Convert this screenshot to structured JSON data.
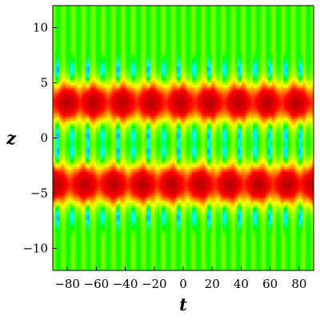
{
  "chart_data": {
    "type": "heatmap",
    "title": "",
    "xlabel": "t",
    "ylabel": "z",
    "xlim": [
      -90,
      90
    ],
    "ylim": [
      -12,
      12
    ],
    "x_ticks": [
      -80,
      -60,
      -40,
      -20,
      0,
      20,
      40,
      60,
      80
    ],
    "x_tick_labels": [
      "−80",
      "−60",
      "−40",
      "−20",
      "0",
      "20",
      "40",
      "60",
      "80"
    ],
    "y_ticks": [
      10,
      5,
      0,
      -5,
      -10
    ],
    "y_tick_labels": [
      "10",
      "5",
      "0",
      "−5",
      "−10"
    ],
    "colormap": [
      "#0000ff",
      "#00ffff",
      "#00ff00",
      "#ffff00",
      "#ff0000",
      "#b00000"
    ],
    "background_value": 0.45,
    "upper_band": {
      "z_center": 3.2,
      "z_halfwidth": 1.8,
      "peak_t": [
        -80,
        -62,
        -42,
        -22,
        -2,
        18,
        38,
        58,
        78
      ]
    },
    "lower_band": {
      "z_center": -4.2,
      "z_halfwidth": 1.8,
      "peak_t": [
        -88,
        -68,
        -48,
        -28,
        -8,
        12,
        32,
        52,
        72,
        90
      ]
    },
    "stripe_period_t": 6.9
  }
}
